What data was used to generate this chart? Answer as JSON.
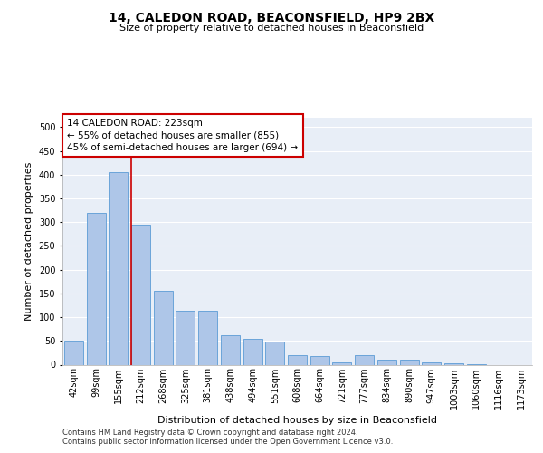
{
  "title1": "14, CALEDON ROAD, BEACONSFIELD, HP9 2BX",
  "title2": "Size of property relative to detached houses in Beaconsfield",
  "xlabel": "Distribution of detached houses by size in Beaconsfield",
  "ylabel": "Number of detached properties",
  "footnote1": "Contains HM Land Registry data © Crown copyright and database right 2024.",
  "footnote2": "Contains public sector information licensed under the Open Government Licence v3.0.",
  "annotation_line1": "14 CALEDON ROAD: 223sqm",
  "annotation_line2": "← 55% of detached houses are smaller (855)",
  "annotation_line3": "45% of semi-detached houses are larger (694) →",
  "bar_color": "#aec6e8",
  "bar_edge_color": "#5b9bd5",
  "ref_line_color": "#cc0000",
  "annotation_box_edge_color": "#cc0000",
  "background_color": "#e8eef7",
  "categories": [
    "42sqm",
    "99sqm",
    "155sqm",
    "212sqm",
    "268sqm",
    "325sqm",
    "381sqm",
    "438sqm",
    "494sqm",
    "551sqm",
    "608sqm",
    "664sqm",
    "721sqm",
    "777sqm",
    "834sqm",
    "890sqm",
    "947sqm",
    "1003sqm",
    "1060sqm",
    "1116sqm",
    "1173sqm"
  ],
  "values": [
    50,
    320,
    405,
    295,
    155,
    113,
    113,
    62,
    55,
    48,
    20,
    19,
    5,
    20,
    11,
    10,
    5,
    3,
    1,
    0,
    0
  ],
  "ref_line_x": 2.57,
  "ylim": [
    0,
    520
  ],
  "yticks": [
    0,
    50,
    100,
    150,
    200,
    250,
    300,
    350,
    400,
    450,
    500
  ],
  "title1_fontsize": 10,
  "title2_fontsize": 8,
  "ylabel_fontsize": 8,
  "xlabel_fontsize": 8,
  "tick_fontsize": 7,
  "annot_fontsize": 7.5,
  "footnote_fontsize": 6
}
